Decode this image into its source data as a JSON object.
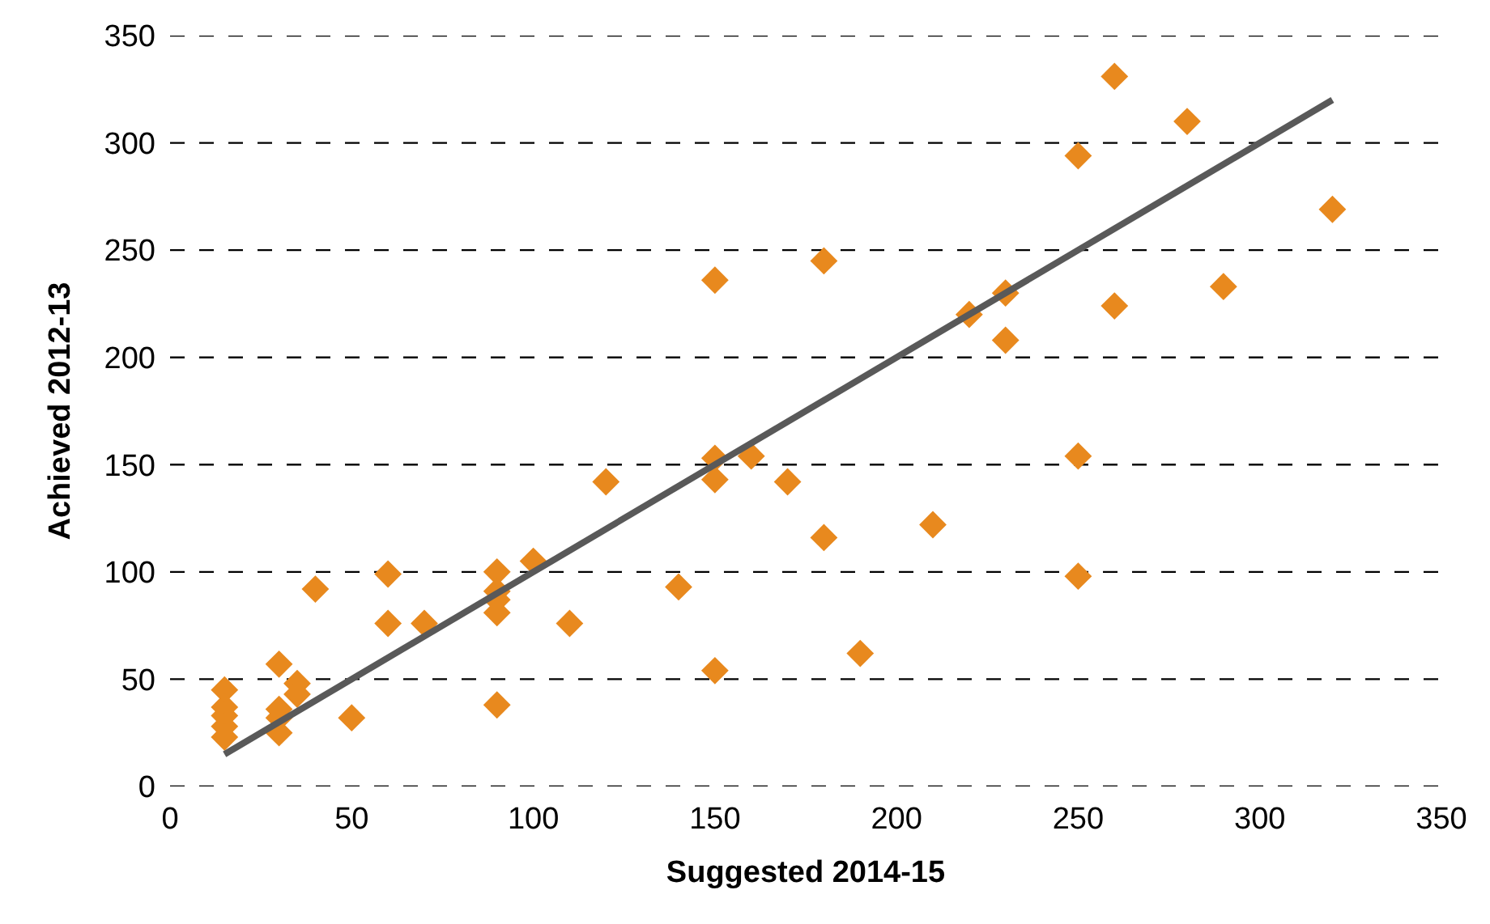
{
  "chart_data": {
    "type": "scatter",
    "xlabel": "Suggested 2014-15",
    "ylabel": "Achieved 2012-13",
    "xlim": [
      0,
      350
    ],
    "xticks": [
      0,
      50,
      100,
      150,
      200,
      250,
      300,
      350
    ],
    "ylim": [
      0,
      350
    ],
    "yticks": [
      0,
      50,
      100,
      150,
      200,
      250,
      300,
      350
    ],
    "grid": "y",
    "series": [
      {
        "marker": "diamond",
        "color": "#e8891e",
        "x": [
          15,
          15,
          15,
          15,
          15,
          30,
          30,
          30,
          30,
          35,
          35,
          40,
          50,
          60,
          60,
          70,
          90,
          90,
          90,
          90,
          90,
          100,
          110,
          120,
          140,
          150,
          150,
          150,
          150,
          160,
          170,
          180,
          180,
          190,
          210,
          220,
          230,
          230,
          250,
          250,
          250,
          260,
          260,
          280,
          290,
          320
        ],
        "values": [
          45,
          37,
          33,
          28,
          23,
          57,
          36,
          32,
          25,
          48,
          43,
          92,
          32,
          99,
          76,
          76,
          100,
          91,
          87,
          81,
          38,
          105,
          76,
          142,
          93,
          236,
          153,
          143,
          54,
          154,
          142,
          245,
          116,
          62,
          122,
          220,
          230,
          208,
          294,
          154,
          98,
          331,
          224,
          310,
          233,
          269
        ]
      },
      {
        "type": "line",
        "marker": "none",
        "line_style": "solid",
        "color": "#595959",
        "x": [
          15,
          320
        ],
        "values": [
          15,
          320
        ]
      }
    ]
  }
}
